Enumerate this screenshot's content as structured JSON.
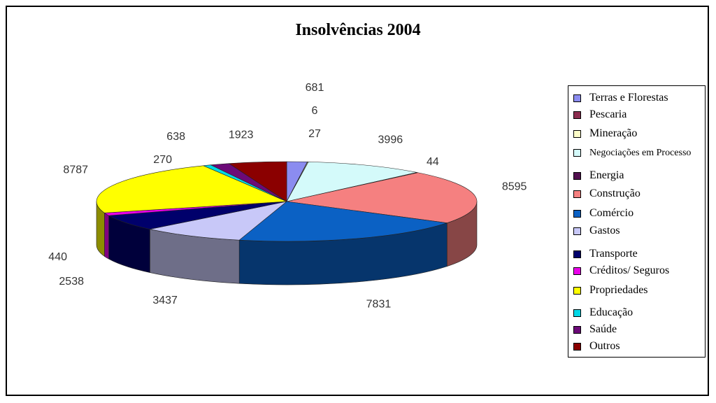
{
  "chart_data": {
    "type": "pie",
    "title": "Insolvências 2004",
    "slices": [
      {
        "label": "Terras e Florestas",
        "value": 681,
        "color": "#8b8cf0"
      },
      {
        "label": "Pescaria",
        "value": 6,
        "color": "#8b2c4f"
      },
      {
        "label": "Mineração",
        "value": 27,
        "color": "#fdfdc8"
      },
      {
        "label": "Negociações em Processo",
        "value": 3996,
        "color": "#d4fafa"
      },
      {
        "label": "Energia",
        "value": 44,
        "color": "#52104f"
      },
      {
        "label": "Construção",
        "value": 8595,
        "color": "#f58080"
      },
      {
        "label": "Comércio",
        "value": 7831,
        "color": "#0b61c4"
      },
      {
        "label": "Gastos",
        "value": 3437,
        "color": "#c8c8f8"
      },
      {
        "label": "Transporte",
        "value": 2538,
        "color": "#00006b"
      },
      {
        "label": "Créditos/ Seguros",
        "value": 440,
        "color": "#ea00ea"
      },
      {
        "label": "Propriedades",
        "value": 8787,
        "color": "#ffff00"
      },
      {
        "label": "Educação",
        "value": 270,
        "color": "#00d8e6"
      },
      {
        "label": "Saúde",
        "value": 638,
        "color": "#6c0a78"
      },
      {
        "label": "Outros",
        "value": 1923,
        "color": "#8b0000"
      }
    ],
    "legend_position": "right"
  }
}
